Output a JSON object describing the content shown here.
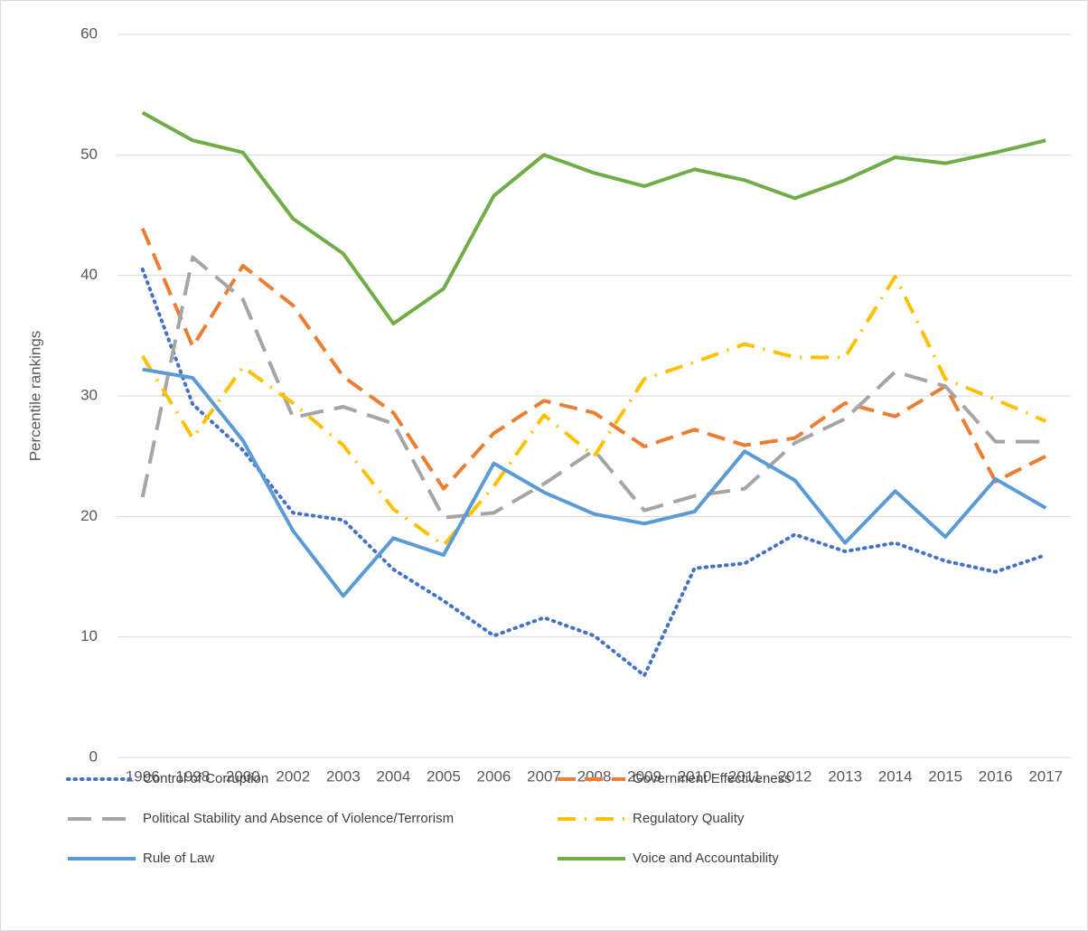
{
  "chart_data": {
    "type": "line",
    "y_label": "Percentile rankings",
    "categories": [
      "1996",
      "1998",
      "2000",
      "2002",
      "2003",
      "2004",
      "2005",
      "2006",
      "2007",
      "2008",
      "2009",
      "2010",
      "2011",
      "2012",
      "2013",
      "2014",
      "2015",
      "2016",
      "2017"
    ],
    "ylim": [
      0,
      60
    ],
    "yticks": [
      0,
      10,
      20,
      30,
      40,
      50,
      60
    ],
    "grid": true,
    "legend": "bottom",
    "series": [
      {
        "name": "Control of Corruption",
        "color": "#4472c4",
        "dash": "dot",
        "values": [
          40.5,
          29.3,
          25.5,
          20.3,
          19.7,
          15.6,
          13.0,
          10.1,
          11.6,
          10.1,
          6.8,
          15.7,
          16.1,
          18.5,
          17.1,
          17.8,
          16.3,
          15.4,
          16.8
        ]
      },
      {
        "name": "Government Effectiveness",
        "color": "#ed7d31",
        "dash": "dash",
        "values": [
          43.9,
          34.1,
          40.8,
          37.5,
          31.6,
          28.6,
          22.3,
          26.9,
          29.6,
          28.6,
          25.8,
          27.2,
          25.9,
          26.5,
          29.4,
          28.3,
          30.8,
          22.9,
          25.0
        ]
      },
      {
        "name": "Political Stability and Absence of Violence/Terrorism",
        "color": "#a5a5a5",
        "dash": "longdash",
        "values": [
          21.6,
          41.5,
          38.0,
          28.2,
          29.1,
          27.7,
          19.9,
          20.3,
          22.7,
          25.5,
          20.5,
          21.7,
          22.3,
          26.1,
          28.1,
          32.0,
          30.8,
          26.2,
          26.2
        ]
      },
      {
        "name": "Regulatory Quality",
        "color": "#ffc000",
        "dash": "dashdot",
        "values": [
          33.3,
          26.5,
          32.4,
          29.4,
          25.9,
          20.6,
          17.6,
          22.5,
          28.4,
          25.0,
          31.4,
          32.8,
          34.3,
          33.2,
          33.2,
          39.9,
          31.4,
          29.7,
          27.9
        ]
      },
      {
        "name": "Rule of Law",
        "color": "#5b9bd5",
        "dash": "solid",
        "values": [
          32.2,
          31.5,
          26.3,
          18.8,
          13.4,
          18.2,
          16.8,
          24.4,
          22.0,
          20.2,
          19.4,
          20.4,
          25.4,
          23.0,
          17.8,
          22.1,
          18.3,
          23.1,
          20.7
        ]
      },
      {
        "name": "Voice and Accountability",
        "color": "#70ad47",
        "dash": "solid",
        "values": [
          53.5,
          51.2,
          50.2,
          44.7,
          41.8,
          36.0,
          38.9,
          46.6,
          50.0,
          48.5,
          47.4,
          48.8,
          47.9,
          46.4,
          47.9,
          49.8,
          49.3,
          50.2,
          51.2
        ]
      }
    ]
  }
}
